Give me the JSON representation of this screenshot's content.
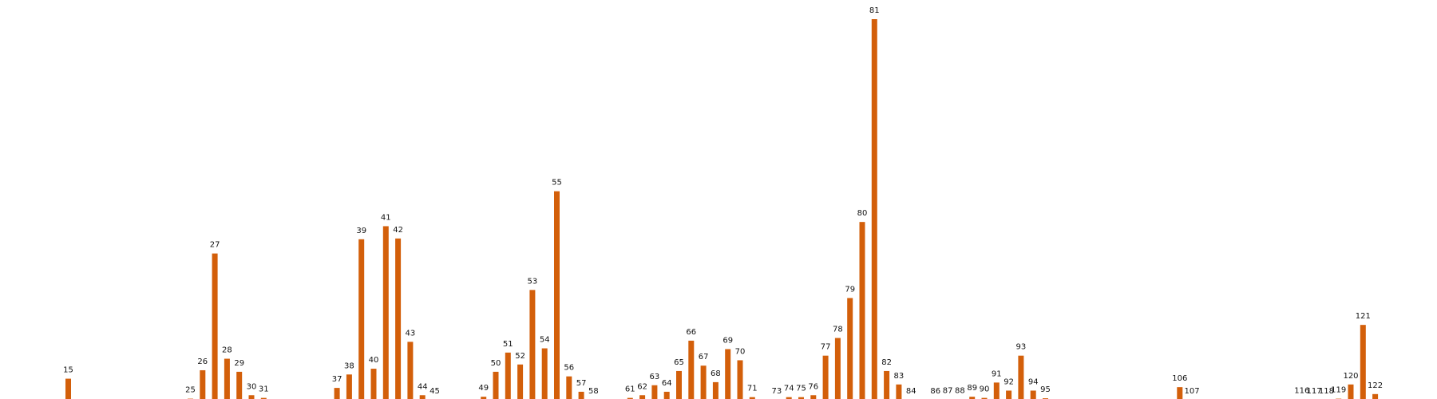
{
  "chart_data": {
    "type": "bar",
    "title": "",
    "xlabel": "",
    "ylabel": "",
    "categories": [
      "15",
      "25",
      "26",
      "27",
      "28",
      "29",
      "30",
      "31",
      "37",
      "38",
      "39",
      "40",
      "41",
      "42",
      "43",
      "44",
      "45",
      "49",
      "50",
      "51",
      "52",
      "53",
      "54",
      "55",
      "56",
      "57",
      "58",
      "61",
      "62",
      "63",
      "64",
      "65",
      "66",
      "67",
      "68",
      "69",
      "70",
      "71",
      "73",
      "74",
      "75",
      "76",
      "77",
      "78",
      "79",
      "80",
      "81",
      "82",
      "83",
      "84",
      "86",
      "87",
      "88",
      "89",
      "90",
      "91",
      "92",
      "93",
      "94",
      "95",
      "106",
      "107",
      "116",
      "117",
      "118",
      "119",
      "120",
      "121",
      "122"
    ],
    "index": [
      15,
      25,
      26,
      27,
      28,
      29,
      30,
      31,
      37,
      38,
      39,
      40,
      41,
      42,
      43,
      44,
      45,
      49,
      50,
      51,
      52,
      53,
      54,
      55,
      56,
      57,
      58,
      61,
      62,
      63,
      64,
      65,
      66,
      67,
      68,
      69,
      70,
      71,
      73,
      74,
      75,
      76,
      77,
      78,
      79,
      80,
      81,
      82,
      83,
      84,
      86,
      87,
      88,
      89,
      90,
      91,
      92,
      93,
      94,
      95,
      106,
      107,
      116,
      117,
      118,
      119,
      120,
      121,
      122
    ],
    "values": [
      5.7,
      0.5,
      7.9,
      38.3,
      10.9,
      7.5,
      1.4,
      0.7,
      3.3,
      6.8,
      42.0,
      8.3,
      45.4,
      42.2,
      15.3,
      1.4,
      0.2,
      1.0,
      7.5,
      12.5,
      9.4,
      28.8,
      13.6,
      54.5,
      6.3,
      2.3,
      0.2,
      0.7,
      1.4,
      4.0,
      2.3,
      7.7,
      15.6,
      9.1,
      4.8,
      13.4,
      10.5,
      0.9,
      0.2,
      0.9,
      0.9,
      1.4,
      11.7,
      16.3,
      26.7,
      46.5,
      99.3,
      7.7,
      4.2,
      0.2,
      0.2,
      0.3,
      0.3,
      1.0,
      0.7,
      4.7,
      2.6,
      11.7,
      2.6,
      0.6,
      3.5,
      0.2,
      0.3,
      0.2,
      0.2,
      0.5,
      4.2,
      19.7,
      1.7
    ],
    "color": "#d35f0a",
    "grid": false,
    "axes_visible": false
  }
}
